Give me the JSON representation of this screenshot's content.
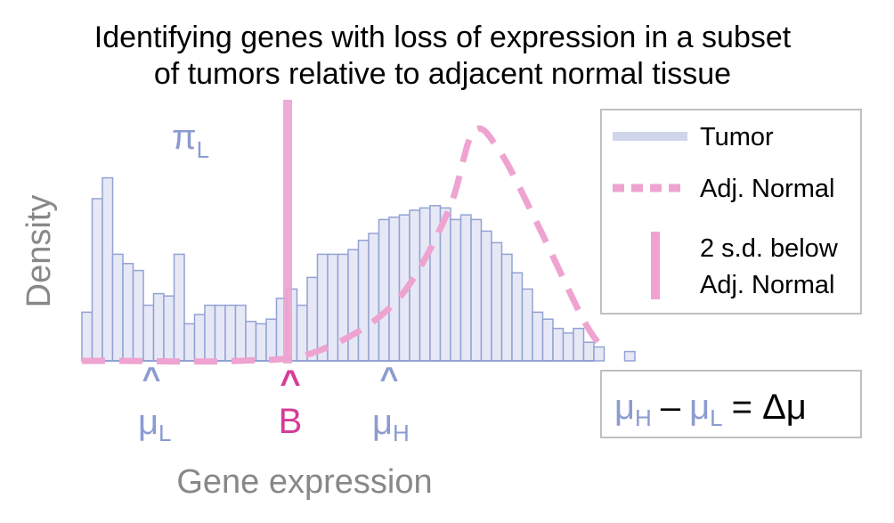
{
  "title": {
    "line1": "Identifying genes with loss of expression in a subset",
    "line2": "of tumors relative to adjacent normal tissue"
  },
  "axes": {
    "ylabel": "Density",
    "xlabel": "Gene expression"
  },
  "annotations": {
    "pi": "π",
    "pi_sub": "L",
    "caret": "^",
    "mu": "μ",
    "mu_l_sub": "L",
    "mu_h_sub": "H",
    "b": "B"
  },
  "legend": {
    "tumor": "Tumor",
    "adj_normal": "Adj. Normal",
    "sd_line1": "2 s.d. below",
    "sd_line2": "Adj. Normal"
  },
  "equation": {
    "mu": "μ",
    "h": "H",
    "minus": "–",
    "l": "L",
    "rhs": "= Δμ"
  },
  "colors": {
    "tumor_fill": "#e6e9f5",
    "tumor_edge": "#93a2d4",
    "normal": "#eea3d0",
    "blue_text": "#8c9bd0",
    "b_marker": "#d63c98",
    "legend_border": "#c0c0c0"
  },
  "chart_data": {
    "type": "bar",
    "tumor_histogram_heights": [
      0.21,
      0.7,
      0.79,
      0.46,
      0.42,
      0.39,
      0.24,
      0.29,
      0.28,
      0.46,
      0.16,
      0.2,
      0.24,
      0.24,
      0.24,
      0.24,
      0.17,
      0.16,
      0.18,
      0.27,
      0.31,
      0.24,
      0.36,
      0.46,
      0.46,
      0.46,
      0.48,
      0.52,
      0.55,
      0.61,
      0.62,
      0.63,
      0.65,
      0.66,
      0.67,
      0.66,
      0.61,
      0.63,
      0.61,
      0.56,
      0.51,
      0.46,
      0.38,
      0.31,
      0.21,
      0.18,
      0.14,
      0.12,
      0.14,
      0.08,
      0.06,
      0,
      0,
      0.04
    ],
    "normal_curve": {
      "style": "dashed",
      "x": [
        0.0,
        0.06,
        0.3,
        0.45,
        0.6,
        0.7,
        0.75,
        0.8,
        0.87,
        0.96,
        1.0
      ],
      "density": [
        0.0,
        0.0,
        0.0,
        0.04,
        0.25,
        0.63,
        0.98,
        0.9,
        0.6,
        0.18,
        0.05
      ]
    },
    "threshold_line": {
      "label": "2 s.d. below Adj. Normal",
      "x_mark": "B"
    },
    "x_marks": [
      "μL",
      "B",
      "μH"
    ],
    "ylabel": "Density",
    "xlabel": "Gene expression"
  }
}
